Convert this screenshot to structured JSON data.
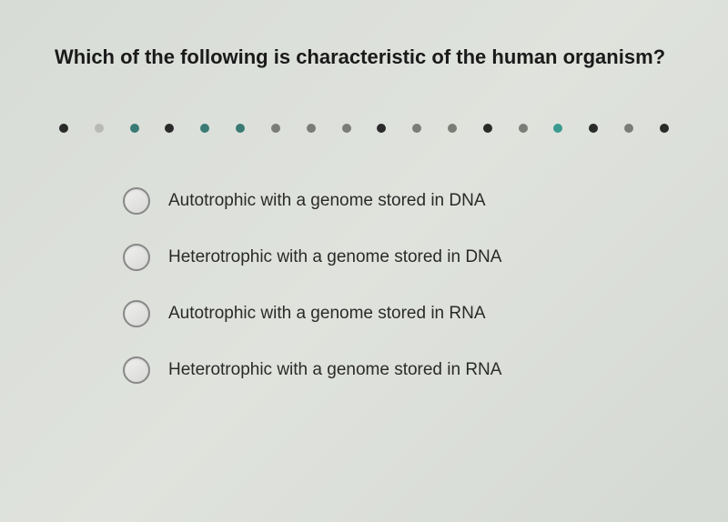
{
  "question": {
    "title": "Which of the following is characteristic of the human organism?"
  },
  "progress": {
    "dots": [
      {
        "color": "#2a2a2a"
      },
      {
        "color": "#b8bab5"
      },
      {
        "color": "#3a7a75"
      },
      {
        "color": "#2a2a2a"
      },
      {
        "color": "#3a7a75"
      },
      {
        "color": "#3a7a75"
      },
      {
        "color": "#7a7c78"
      },
      {
        "color": "#7a7c78"
      },
      {
        "color": "#7a7c78"
      },
      {
        "color": "#2a2a2a"
      },
      {
        "color": "#7a7c78"
      },
      {
        "color": "#7a7c78"
      },
      {
        "color": "#2a2a2a"
      },
      {
        "color": "#7a7c78"
      },
      {
        "color": "#3a9a90"
      },
      {
        "color": "#2a2a2a"
      },
      {
        "color": "#7a7c78"
      },
      {
        "color": "#2a2a2a"
      }
    ]
  },
  "options": [
    {
      "label": "Autotrophic with a genome stored in DNA"
    },
    {
      "label": "Heterotrophic with a genome stored in DNA"
    },
    {
      "label": "Autotrophic with a genome stored in RNA"
    },
    {
      "label": "Heterotrophic with a genome stored in RNA"
    }
  ]
}
